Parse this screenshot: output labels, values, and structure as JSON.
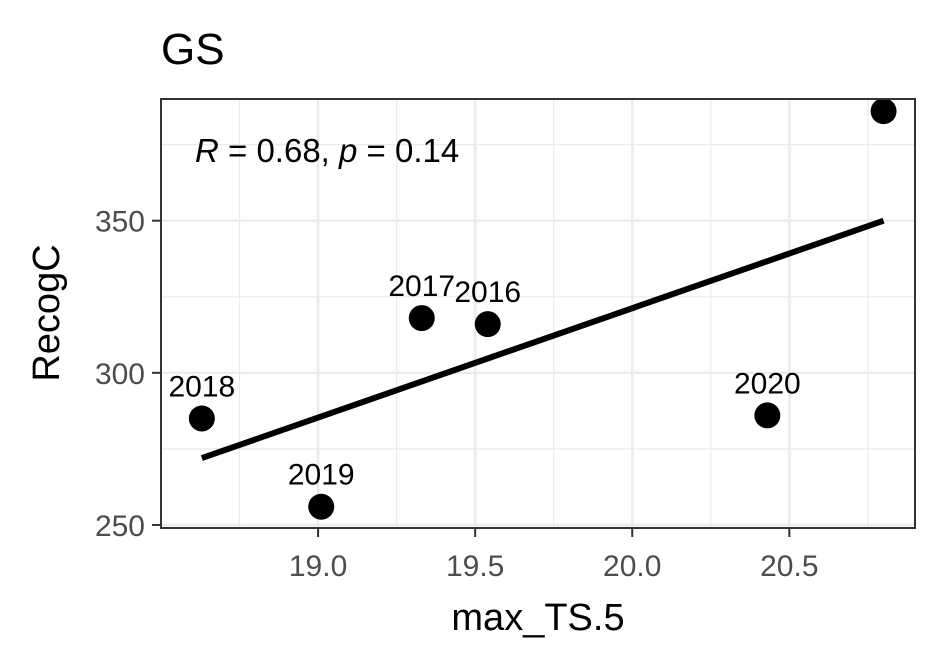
{
  "chart_data": {
    "type": "scatter",
    "title": "GS",
    "xlabel": "max_TS.5",
    "ylabel": "RecogC",
    "xlim": [
      18.5,
      20.9
    ],
    "ylim": [
      249,
      390
    ],
    "xticks": [
      19.0,
      19.5,
      20.0,
      20.5
    ],
    "xtick_labels": [
      "19.0",
      "19.5",
      "20.0",
      "20.5"
    ],
    "yticks": [
      250,
      300,
      350
    ],
    "ytick_labels": [
      "250",
      "300",
      "350"
    ],
    "grid": true,
    "theme": "bw",
    "points": [
      {
        "x": 18.63,
        "y": 285,
        "label": "2018"
      },
      {
        "x": 19.01,
        "y": 256,
        "label": "2019"
      },
      {
        "x": 19.33,
        "y": 318,
        "label": "2017"
      },
      {
        "x": 19.54,
        "y": 316,
        "label": "2016"
      },
      {
        "x": 20.43,
        "y": 286,
        "label": "2020"
      },
      {
        "x": 20.8,
        "y": 386,
        "label": ""
      }
    ],
    "regression_line": {
      "x": [
        18.63,
        20.8
      ],
      "y": [
        272,
        350
      ]
    },
    "annotation": {
      "r_symbol": "R",
      "r_text": " = 0.68, ",
      "p_symbol": "p",
      "p_text": " = 0.14"
    },
    "colors": {
      "points": "#000000",
      "line": "#000000",
      "grid": "#ebebeb",
      "panel_border": "#333333",
      "tick_text": "#4d4d4d"
    }
  }
}
